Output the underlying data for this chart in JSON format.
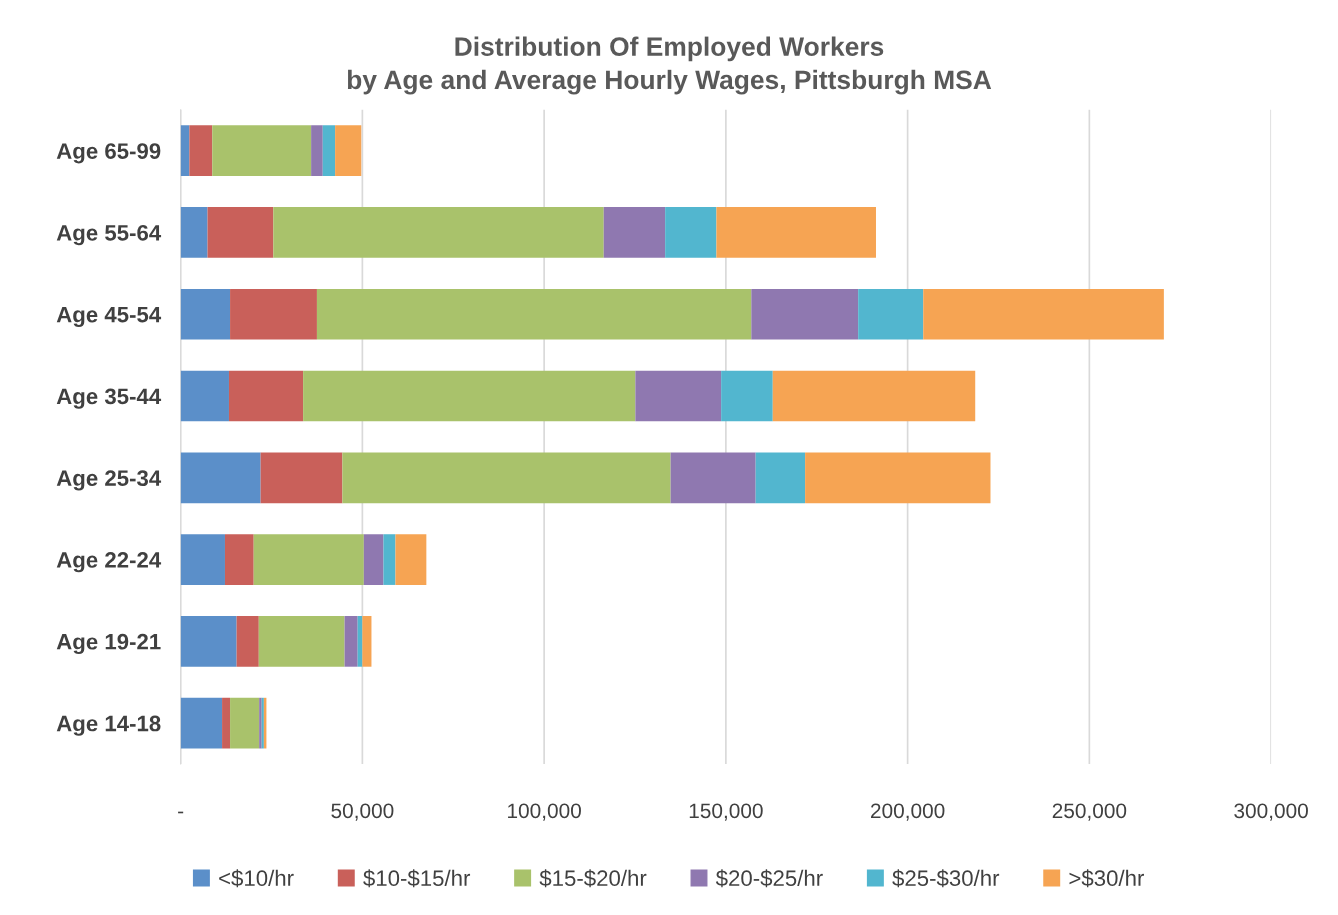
{
  "chart_data": {
    "type": "bar",
    "orientation": "horizontal",
    "stacked": true,
    "title": "Distribution Of Employed Workers\nby Age and Average Hourly Wages, Pittsburgh MSA",
    "categories": [
      "Age 65-99",
      "Age 55-64",
      "Age 45-54",
      "Age 35-44",
      "Age 25-34",
      "Age 22-24",
      "Age 19-21",
      "Age 14-18"
    ],
    "series": [
      {
        "name": "<$10/hr",
        "color": "#5b8fc9",
        "values": [
          2400,
          7400,
          13600,
          13300,
          22000,
          12200,
          15400,
          11400
        ]
      },
      {
        "name": "$10-$15/hr",
        "color": "#c9605a",
        "values": [
          6300,
          18100,
          23900,
          20400,
          22500,
          7900,
          6100,
          2200
        ]
      },
      {
        "name": "$15-$20/hr",
        "color": "#a9c26b",
        "values": [
          27200,
          90900,
          119500,
          91400,
          90300,
          30300,
          23600,
          8000
        ]
      },
      {
        "name": "$20-$25/hr",
        "color": "#8f78b0",
        "values": [
          3200,
          16900,
          29400,
          23600,
          23400,
          5400,
          3600,
          700
        ]
      },
      {
        "name": "$25-$30/hr",
        "color": "#52b6cf",
        "values": [
          3400,
          14100,
          17900,
          14200,
          13600,
          3300,
          1300,
          600
        ]
      },
      {
        "name": ">$30/hr",
        "color": "#f6a453",
        "values": [
          7200,
          43900,
          66200,
          55700,
          51000,
          8500,
          2500,
          700
        ]
      }
    ],
    "xlim": [
      0,
      300000
    ],
    "xticks": [
      {
        "value": 0,
        "label": "-"
      },
      {
        "value": 50000,
        "label": "50,000"
      },
      {
        "value": 100000,
        "label": "100,000"
      },
      {
        "value": 150000,
        "label": "150,000"
      },
      {
        "value": 200000,
        "label": "200,000"
      },
      {
        "value": 250000,
        "label": "250,000"
      },
      {
        "value": 300000,
        "label": "300,000"
      }
    ],
    "grid": "x",
    "legend": "bottom"
  }
}
